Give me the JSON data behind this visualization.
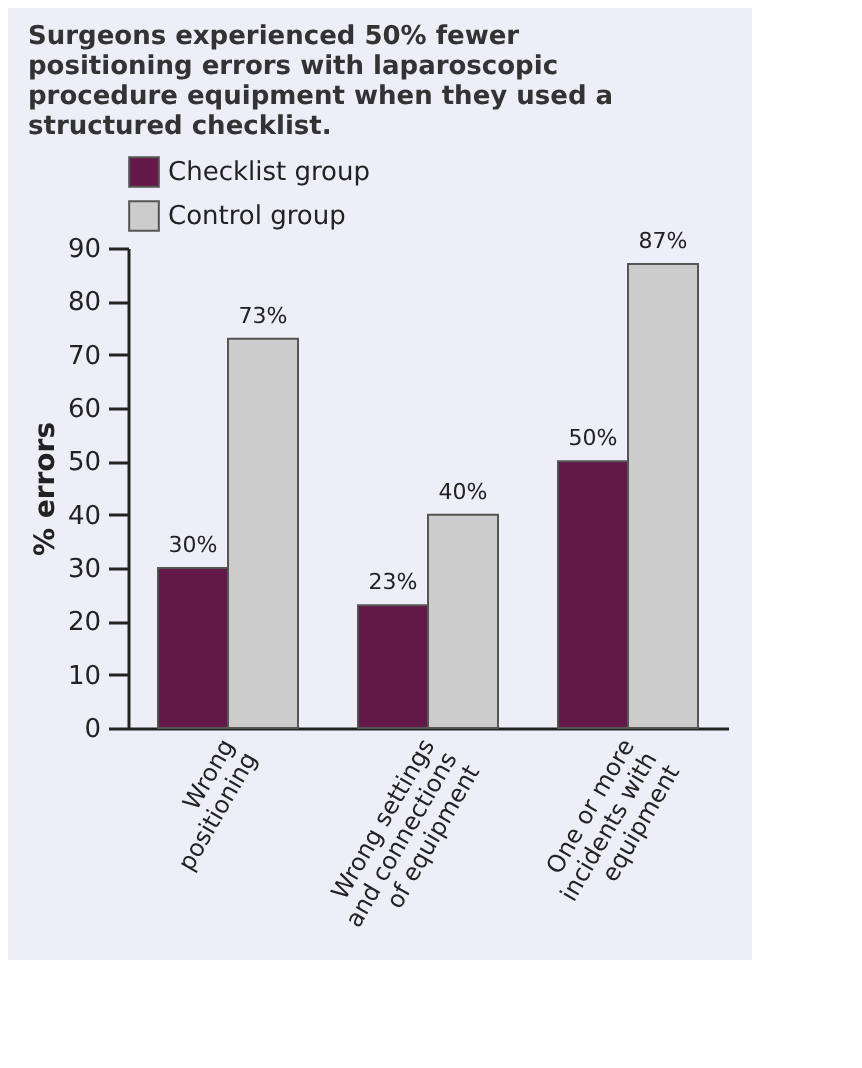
{
  "chart_data": {
    "type": "bar",
    "title": "Surgeons experienced 50% fewer positioning errors with laparoscopic procedure equipment when they used a structured checklist.",
    "ylabel": "% errors",
    "categories": [
      "Wrong positioning",
      "Wrong settings and connections of equipment",
      "One or more incidents with equipment"
    ],
    "series": [
      {
        "name": "Checklist group",
        "color": "#641848",
        "values": [
          30,
          23,
          50
        ],
        "value_labels": [
          "30%",
          "23%",
          "50%"
        ]
      },
      {
        "name": "Control group",
        "color": "#cccccc",
        "values": [
          73,
          40,
          87
        ],
        "value_labels": [
          "73%",
          "40%",
          "87%"
        ]
      }
    ],
    "ylim": [
      0,
      90
    ],
    "yticks": [
      0,
      10,
      20,
      30,
      40,
      50,
      60,
      70,
      80,
      90
    ],
    "grid": false,
    "legend": "top"
  }
}
